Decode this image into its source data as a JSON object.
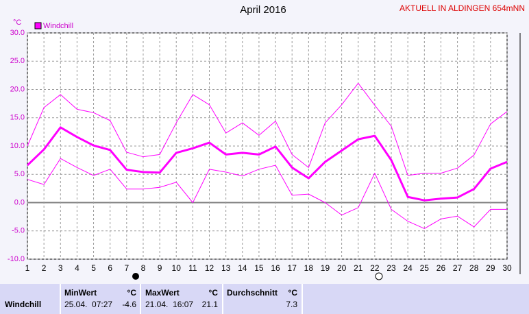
{
  "header": "AKTUELL IN ALDINGEN 654mNN",
  "chart_data": {
    "type": "line",
    "title": "April 2016",
    "y_unit": "°C",
    "legend": "Windchill",
    "grid": true,
    "x": [
      1,
      2,
      3,
      4,
      5,
      6,
      7,
      8,
      9,
      10,
      11,
      12,
      13,
      14,
      15,
      16,
      17,
      18,
      19,
      20,
      21,
      22,
      23,
      24,
      25,
      26,
      27,
      28,
      29,
      30
    ],
    "xlim": [
      1,
      30
    ],
    "xticks": [
      1,
      2,
      3,
      4,
      5,
      6,
      7,
      8,
      9,
      10,
      11,
      12,
      13,
      14,
      15,
      16,
      17,
      18,
      19,
      20,
      21,
      22,
      23,
      24,
      25,
      26,
      27,
      28,
      29,
      30
    ],
    "ylim": [
      -10,
      30
    ],
    "yticks": [
      {
        "value": -10,
        "label": "-10.0"
      },
      {
        "value": -5,
        "label": "-5.0"
      },
      {
        "value": 0,
        "label": "0.0"
      },
      {
        "value": 5,
        "label": "5.0"
      },
      {
        "value": 10,
        "label": "10.0"
      },
      {
        "value": 15,
        "label": "15.0"
      },
      {
        "value": 20,
        "label": "20.0"
      },
      {
        "value": 25,
        "label": "25.0"
      },
      {
        "value": 30,
        "label": "30.0"
      }
    ],
    "series": [
      {
        "color": "#ff00ff",
        "width": 1,
        "values": [
          10.0,
          16.8,
          19.1,
          16.5,
          15.9,
          14.5,
          8.9,
          8.1,
          8.5,
          14.1,
          19.1,
          17.3,
          12.3,
          14.1,
          11.9,
          14.4,
          8.5,
          6.2,
          14.1,
          17.3,
          21.1,
          17.2,
          13.5,
          4.8,
          5.2,
          5.2,
          6.1,
          8.4,
          13.9,
          16.1
        ]
      },
      {
        "color": "#ff00ff",
        "width": 3,
        "values": [
          6.6,
          9.4,
          13.3,
          11.6,
          10.1,
          9.3,
          5.8,
          5.4,
          5.3,
          8.8,
          9.6,
          10.6,
          8.5,
          8.8,
          8.5,
          9.9,
          6.2,
          4.3,
          7.2,
          9.2,
          11.2,
          11.8,
          7.5,
          1.0,
          0.4,
          0.7,
          0.9,
          2.4,
          6.0,
          7.2
        ]
      },
      {
        "color": "#ff00ff",
        "width": 1,
        "values": [
          4.1,
          3.2,
          7.8,
          6.2,
          4.8,
          5.9,
          2.4,
          2.4,
          2.7,
          3.6,
          0.0,
          5.9,
          5.4,
          4.7,
          5.9,
          6.6,
          1.3,
          1.5,
          0.0,
          -2.2,
          -0.9,
          5.2,
          -1.2,
          -3.3,
          -4.6,
          -2.9,
          -2.4,
          -4.3,
          -1.2,
          -1.2
        ]
      }
    ]
  },
  "table": {
    "headers": [
      "MinWert",
      "°C",
      "MaxWert",
      "°C",
      "Durchschnitt",
      "°C"
    ],
    "rows": [
      [
        "Windchill",
        "25.04.  07:27",
        -4.6,
        "21.04.  16:07",
        21.1,
        7.3
      ]
    ]
  }
}
